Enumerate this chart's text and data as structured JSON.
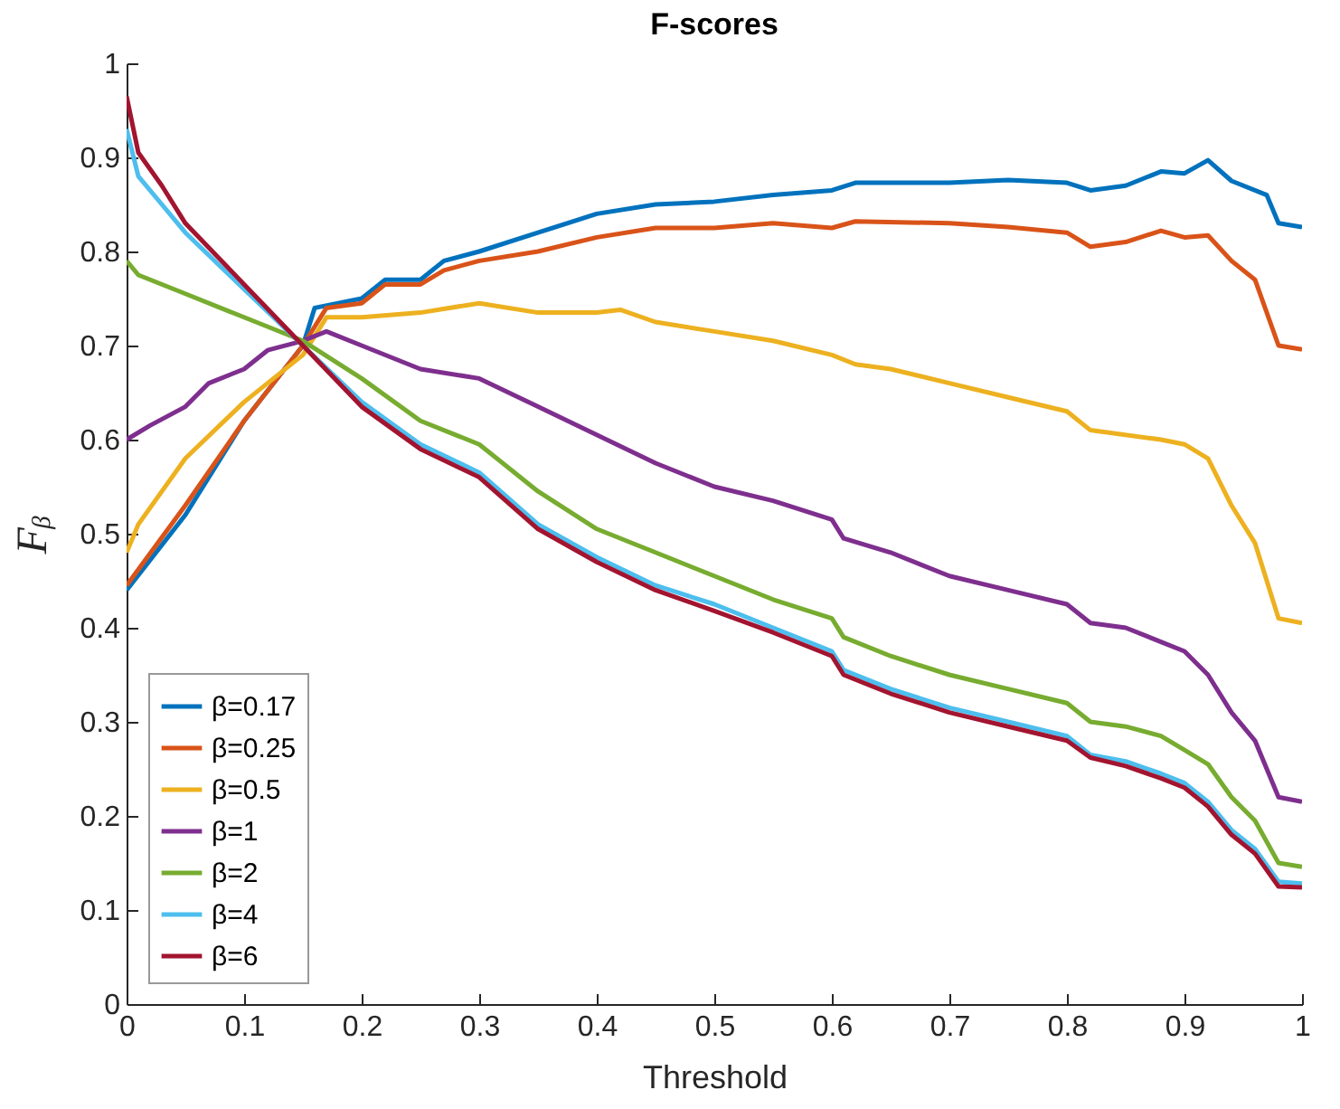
{
  "chart_data": {
    "type": "line",
    "title": "F-scores",
    "xlabel": "Threshold",
    "ylabel": "Fᵦ",
    "xlim": [
      0,
      1
    ],
    "ylim": [
      0,
      1
    ],
    "xticks": [
      0,
      0.1,
      0.2,
      0.3,
      0.4,
      0.5,
      0.6,
      0.7,
      0.8,
      0.9,
      1
    ],
    "yticks": [
      0,
      0.1,
      0.2,
      0.3,
      0.4,
      0.5,
      0.6,
      0.7,
      0.8,
      0.9,
      1
    ],
    "grid": false,
    "legend": "bottom left",
    "line_style": "solid",
    "series": [
      {
        "name": "β=0.17",
        "color": "#0072bd",
        "x": [
          0,
          0.05,
          0.1,
          0.15,
          0.16,
          0.2,
          0.22,
          0.25,
          0.27,
          0.3,
          0.35,
          0.4,
          0.45,
          0.5,
          0.55,
          0.6,
          0.62,
          0.7,
          0.75,
          0.8,
          0.82,
          0.85,
          0.88,
          0.9,
          0.92,
          0.94,
          0.97,
          0.98,
          1
        ],
        "values": [
          0.44,
          0.52,
          0.62,
          0.7,
          0.74,
          0.75,
          0.77,
          0.77,
          0.79,
          0.8,
          0.82,
          0.84,
          0.85,
          0.853,
          0.86,
          0.865,
          0.873,
          0.873,
          0.876,
          0.873,
          0.865,
          0.87,
          0.885,
          0.883,
          0.897,
          0.875,
          0.86,
          0.83,
          0.826
        ]
      },
      {
        "name": "β=0.25",
        "color": "#d95319",
        "x": [
          0,
          0.05,
          0.1,
          0.15,
          0.17,
          0.2,
          0.22,
          0.25,
          0.27,
          0.3,
          0.35,
          0.4,
          0.45,
          0.5,
          0.55,
          0.6,
          0.62,
          0.7,
          0.75,
          0.8,
          0.82,
          0.85,
          0.88,
          0.9,
          0.92,
          0.94,
          0.96,
          0.98,
          1
        ],
        "values": [
          0.445,
          0.53,
          0.62,
          0.7,
          0.74,
          0.745,
          0.765,
          0.765,
          0.78,
          0.79,
          0.8,
          0.815,
          0.825,
          0.825,
          0.83,
          0.825,
          0.832,
          0.83,
          0.826,
          0.82,
          0.805,
          0.81,
          0.822,
          0.815,
          0.817,
          0.79,
          0.77,
          0.7,
          0.696
        ]
      },
      {
        "name": "β=0.5",
        "color": "#edb120",
        "x": [
          0,
          0.01,
          0.05,
          0.1,
          0.15,
          0.17,
          0.2,
          0.25,
          0.3,
          0.35,
          0.4,
          0.42,
          0.45,
          0.5,
          0.55,
          0.6,
          0.62,
          0.65,
          0.7,
          0.75,
          0.8,
          0.82,
          0.88,
          0.9,
          0.92,
          0.94,
          0.96,
          0.98,
          1
        ],
        "values": [
          0.48,
          0.51,
          0.58,
          0.64,
          0.69,
          0.73,
          0.73,
          0.735,
          0.745,
          0.735,
          0.735,
          0.738,
          0.725,
          0.715,
          0.705,
          0.69,
          0.68,
          0.675,
          0.66,
          0.645,
          0.63,
          0.61,
          0.6,
          0.595,
          0.58,
          0.53,
          0.49,
          0.41,
          0.405
        ]
      },
      {
        "name": "β=1",
        "color": "#7e2f8e",
        "x": [
          0,
          0.02,
          0.05,
          0.07,
          0.1,
          0.12,
          0.15,
          0.17,
          0.2,
          0.25,
          0.3,
          0.35,
          0.4,
          0.45,
          0.5,
          0.55,
          0.6,
          0.61,
          0.65,
          0.7,
          0.75,
          0.8,
          0.82,
          0.85,
          0.88,
          0.9,
          0.92,
          0.94,
          0.96,
          0.98,
          1
        ],
        "values": [
          0.6,
          0.615,
          0.635,
          0.66,
          0.675,
          0.695,
          0.705,
          0.715,
          0.7,
          0.675,
          0.665,
          0.635,
          0.605,
          0.575,
          0.55,
          0.535,
          0.515,
          0.495,
          0.48,
          0.455,
          0.44,
          0.425,
          0.405,
          0.4,
          0.385,
          0.375,
          0.35,
          0.31,
          0.28,
          0.22,
          0.215
        ]
      },
      {
        "name": "β=2",
        "color": "#77ac30",
        "x": [
          0,
          0.01,
          0.05,
          0.1,
          0.15,
          0.2,
          0.25,
          0.3,
          0.35,
          0.4,
          0.45,
          0.5,
          0.55,
          0.6,
          0.61,
          0.65,
          0.7,
          0.75,
          0.8,
          0.82,
          0.85,
          0.88,
          0.9,
          0.92,
          0.94,
          0.96,
          0.98,
          1
        ],
        "values": [
          0.79,
          0.775,
          0.755,
          0.73,
          0.705,
          0.665,
          0.62,
          0.595,
          0.545,
          0.505,
          0.48,
          0.455,
          0.43,
          0.41,
          0.39,
          0.37,
          0.35,
          0.335,
          0.32,
          0.3,
          0.295,
          0.285,
          0.27,
          0.255,
          0.22,
          0.195,
          0.15,
          0.146
        ]
      },
      {
        "name": "β=4",
        "color": "#4dbeee",
        "x": [
          0,
          0.01,
          0.03,
          0.05,
          0.1,
          0.15,
          0.2,
          0.25,
          0.3,
          0.35,
          0.4,
          0.45,
          0.5,
          0.55,
          0.6,
          0.61,
          0.65,
          0.7,
          0.75,
          0.8,
          0.82,
          0.85,
          0.88,
          0.9,
          0.92,
          0.94,
          0.96,
          0.98,
          1
        ],
        "values": [
          0.93,
          0.88,
          0.85,
          0.82,
          0.76,
          0.7,
          0.64,
          0.595,
          0.565,
          0.51,
          0.475,
          0.445,
          0.425,
          0.4,
          0.375,
          0.355,
          0.335,
          0.315,
          0.3,
          0.285,
          0.265,
          0.258,
          0.245,
          0.235,
          0.215,
          0.185,
          0.165,
          0.13,
          0.128
        ]
      },
      {
        "name": "β=6",
        "color": "#a2142f",
        "x": [
          0,
          0.01,
          0.03,
          0.05,
          0.1,
          0.15,
          0.2,
          0.25,
          0.3,
          0.35,
          0.4,
          0.45,
          0.5,
          0.55,
          0.6,
          0.61,
          0.65,
          0.7,
          0.75,
          0.8,
          0.82,
          0.85,
          0.88,
          0.9,
          0.92,
          0.94,
          0.96,
          0.98,
          1
        ],
        "values": [
          0.965,
          0.905,
          0.87,
          0.83,
          0.765,
          0.7,
          0.635,
          0.59,
          0.56,
          0.505,
          0.47,
          0.44,
          0.418,
          0.395,
          0.37,
          0.35,
          0.33,
          0.31,
          0.295,
          0.28,
          0.262,
          0.253,
          0.24,
          0.23,
          0.21,
          0.18,
          0.16,
          0.125,
          0.124
        ]
      }
    ]
  }
}
